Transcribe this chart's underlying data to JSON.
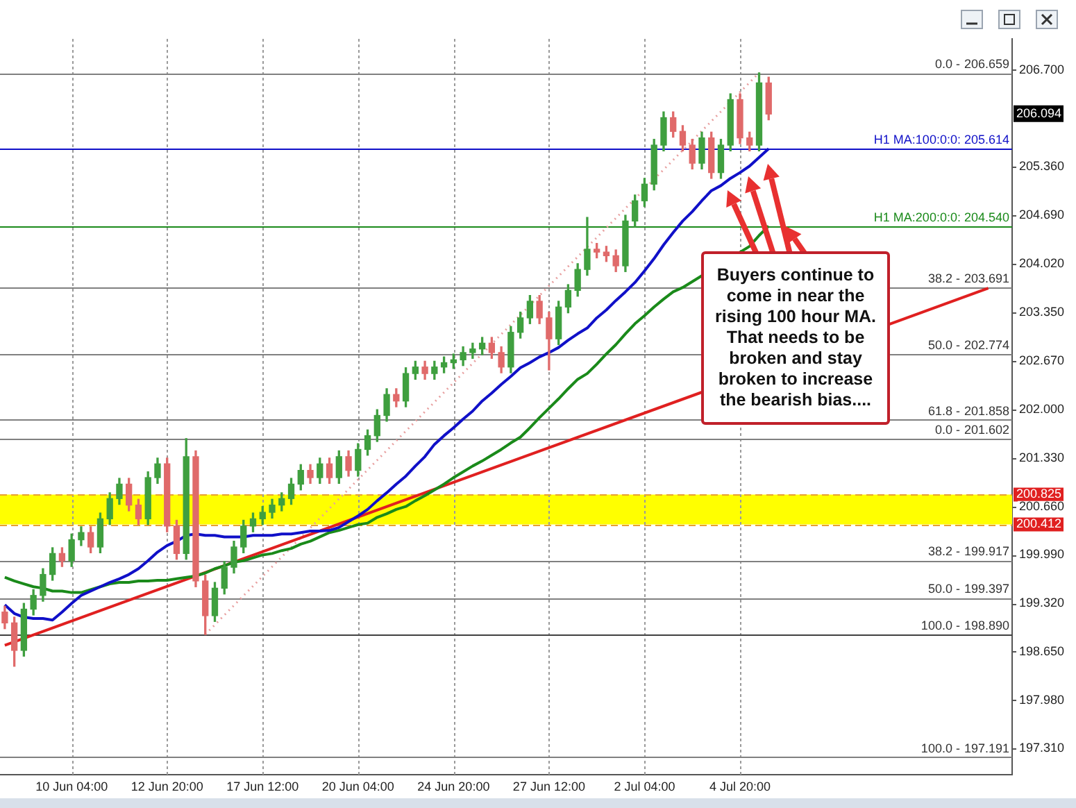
{
  "chart_data": {
    "type": "candlestick",
    "categories": [
      null,
      null,
      null,
      null,
      null,
      null,
      null,
      "10 Jun 04:00",
      null,
      null,
      null,
      null,
      null,
      null,
      null,
      null,
      null,
      "12 Jun 20:00",
      null,
      null,
      null,
      null,
      null,
      null,
      null,
      null,
      null,
      "17 Jun 12:00",
      null,
      null,
      null,
      null,
      null,
      null,
      null,
      null,
      null,
      "20 Jun 04:00",
      null,
      null,
      null,
      null,
      null,
      null,
      null,
      null,
      null,
      "24 Jun 20:00",
      null,
      null,
      null,
      null,
      null,
      null,
      null,
      null,
      null,
      "27 Jun 12:00",
      null,
      null,
      null,
      null,
      null,
      null,
      null,
      null,
      null,
      "2 Jul 04:00",
      null,
      null,
      null,
      null,
      null,
      null,
      null,
      null,
      null,
      "4 Jul 20:00",
      null,
      null,
      null,
      null,
      null,
      null,
      null,
      null,
      null,
      null,
      null,
      null,
      null,
      null,
      null,
      null,
      null,
      null,
      null,
      null,
      null,
      null,
      null,
      null,
      null,
      null,
      null,
      null
    ],
    "ohlc": [
      [
        199.2,
        199.28,
        198.97,
        199.05
      ],
      [
        199.05,
        199.13,
        198.45,
        198.67
      ],
      [
        198.67,
        199.32,
        198.59,
        199.24
      ],
      [
        199.24,
        199.51,
        199.16,
        199.43
      ],
      [
        199.43,
        199.8,
        199.35,
        199.72
      ],
      [
        199.72,
        200.09,
        199.64,
        200.01
      ],
      [
        200.01,
        200.09,
        199.83,
        199.91
      ],
      [
        199.91,
        200.28,
        199.83,
        200.2
      ],
      [
        200.2,
        200.38,
        200.12,
        200.3
      ],
      [
        200.3,
        200.38,
        200.02,
        200.1
      ],
      [
        200.1,
        200.57,
        200.02,
        200.49
      ],
      [
        200.49,
        200.85,
        200.41,
        200.77
      ],
      [
        200.77,
        201.05,
        200.69,
        200.97
      ],
      [
        200.97,
        201.05,
        200.6,
        200.68
      ],
      [
        200.68,
        200.76,
        200.41,
        200.49
      ],
      [
        200.49,
        201.14,
        200.41,
        201.06
      ],
      [
        201.06,
        201.33,
        200.98,
        201.25
      ],
      [
        201.25,
        201.33,
        200.31,
        200.39
      ],
      [
        200.39,
        200.47,
        199.93,
        200.01
      ],
      [
        200.01,
        201.6,
        199.93,
        201.35
      ],
      [
        201.35,
        201.43,
        199.55,
        199.63
      ],
      [
        199.63,
        199.71,
        198.89,
        199.15
      ],
      [
        199.15,
        199.61,
        199.07,
        199.53
      ],
      [
        199.53,
        199.9,
        199.45,
        199.82
      ],
      [
        199.82,
        200.18,
        199.74,
        200.1
      ],
      [
        200.1,
        200.47,
        200.02,
        200.39
      ],
      [
        200.39,
        200.57,
        200.31,
        200.49
      ],
      [
        200.49,
        200.66,
        200.41,
        200.58
      ],
      [
        200.58,
        200.76,
        200.5,
        200.68
      ],
      [
        200.68,
        200.85,
        200.6,
        200.77
      ],
      [
        200.77,
        201.05,
        200.69,
        200.97
      ],
      [
        200.97,
        201.24,
        200.89,
        201.16
      ],
      [
        201.16,
        201.24,
        200.98,
        201.06
      ],
      [
        201.06,
        201.33,
        200.98,
        201.25
      ],
      [
        201.25,
        201.33,
        200.98,
        201.06
      ],
      [
        201.06,
        201.43,
        200.98,
        201.35
      ],
      [
        201.35,
        201.43,
        201.08,
        201.16
      ],
      [
        201.16,
        201.53,
        201.08,
        201.45
      ],
      [
        201.45,
        201.72,
        201.37,
        201.64
      ],
      [
        201.64,
        202.0,
        201.56,
        201.92
      ],
      [
        201.92,
        202.29,
        201.84,
        202.21
      ],
      [
        202.21,
        202.29,
        202.04,
        202.12
      ],
      [
        202.12,
        202.58,
        202.04,
        202.5
      ],
      [
        202.5,
        202.67,
        202.42,
        202.59
      ],
      [
        202.59,
        202.67,
        202.42,
        202.5
      ],
      [
        202.5,
        202.67,
        202.42,
        202.59
      ],
      [
        202.59,
        202.73,
        202.51,
        202.65
      ],
      [
        202.65,
        202.77,
        202.57,
        202.69
      ],
      [
        202.69,
        202.87,
        202.61,
        202.79
      ],
      [
        202.79,
        202.92,
        202.71,
        202.84
      ],
      [
        202.84,
        203.0,
        202.76,
        202.92
      ],
      [
        202.92,
        203.0,
        202.71,
        202.79
      ],
      [
        202.79,
        202.87,
        202.51,
        202.59
      ],
      [
        202.59,
        203.15,
        202.51,
        203.07
      ],
      [
        203.07,
        203.35,
        202.99,
        203.27
      ],
      [
        203.27,
        203.58,
        203.19,
        203.5
      ],
      [
        203.5,
        203.58,
        203.19,
        203.27
      ],
      [
        203.27,
        203.35,
        202.55,
        202.98
      ],
      [
        202.98,
        203.5,
        202.9,
        203.42
      ],
      [
        203.42,
        203.73,
        203.34,
        203.65
      ],
      [
        203.65,
        204.02,
        203.57,
        203.94
      ],
      [
        203.94,
        204.66,
        203.86,
        204.22
      ],
      [
        204.22,
        204.3,
        204.1,
        204.18
      ],
      [
        204.18,
        204.26,
        204.05,
        204.13
      ],
      [
        204.13,
        204.21,
        203.91,
        203.99
      ],
      [
        203.99,
        204.69,
        203.91,
        204.61
      ],
      [
        204.61,
        204.97,
        204.53,
        204.89
      ],
      [
        204.89,
        205.2,
        204.81,
        205.12
      ],
      [
        205.12,
        205.74,
        205.04,
        205.66
      ],
      [
        205.66,
        206.12,
        205.58,
        206.04
      ],
      [
        206.04,
        206.12,
        205.77,
        205.85
      ],
      [
        205.85,
        205.93,
        205.58,
        205.66
      ],
      [
        205.66,
        205.74,
        205.33,
        205.41
      ],
      [
        205.41,
        205.84,
        205.33,
        205.76
      ],
      [
        205.76,
        205.84,
        205.2,
        205.28
      ],
      [
        205.28,
        205.74,
        205.2,
        205.66
      ],
      [
        205.66,
        206.37,
        205.58,
        206.29
      ],
      [
        206.29,
        206.37,
        205.68,
        205.76
      ],
      [
        205.76,
        205.84,
        205.58,
        205.66
      ],
      [
        205.66,
        206.66,
        205.58,
        206.52
      ],
      [
        206.52,
        206.6,
        206.01,
        206.09
      ],
      null,
      null,
      null,
      null,
      null,
      null,
      null,
      null,
      null,
      null,
      null,
      null,
      null,
      null,
      null,
      null,
      null,
      null,
      null,
      null,
      null,
      null,
      null,
      null,
      null
    ],
    "series": [
      {
        "type": "line",
        "color": "#1010c8",
        "values": [
          199.3,
          199.18,
          199.13,
          199.11,
          199.11,
          199.09,
          199.2,
          199.32,
          199.43,
          199.49,
          199.55,
          199.61,
          199.66,
          199.72,
          199.8,
          199.91,
          200.03,
          200.12,
          200.18,
          200.26,
          200.28,
          200.26,
          200.26,
          200.24,
          200.24,
          200.24,
          200.26,
          200.26,
          200.26,
          200.28,
          200.28,
          200.3,
          200.32,
          200.32,
          200.33,
          200.37,
          200.45,
          200.53,
          200.62,
          200.74,
          200.85,
          200.97,
          201.08,
          201.22,
          201.35,
          201.52,
          201.64,
          201.75,
          201.87,
          201.98,
          202.12,
          202.23,
          202.35,
          202.46,
          202.58,
          202.65,
          202.73,
          202.79,
          202.86,
          202.96,
          203.05,
          203.13,
          203.27,
          203.38,
          203.51,
          203.63,
          203.76,
          203.92,
          204.09,
          204.28,
          204.45,
          204.61,
          204.74,
          204.89,
          205.03,
          205.1,
          205.2,
          205.28,
          205.37,
          205.49,
          205.61,
          null,
          null,
          null,
          null,
          null,
          null,
          null,
          null,
          null,
          null,
          null,
          null,
          null,
          null,
          null,
          null,
          null,
          null,
          null,
          null,
          null,
          null,
          null,
          null,
          null
        ]
      },
      {
        "type": "line",
        "color": "#1a8a1a",
        "values": [
          199.68,
          199.63,
          199.59,
          199.55,
          199.53,
          199.49,
          199.49,
          199.47,
          199.47,
          199.51,
          199.55,
          199.59,
          199.61,
          199.61,
          199.63,
          199.63,
          199.64,
          199.64,
          199.66,
          199.68,
          199.7,
          199.74,
          199.8,
          199.84,
          199.89,
          199.91,
          199.95,
          199.99,
          200.01,
          200.05,
          200.08,
          200.14,
          200.18,
          200.24,
          200.3,
          200.33,
          200.37,
          200.41,
          200.43,
          200.51,
          200.56,
          200.62,
          200.66,
          200.74,
          200.81,
          200.89,
          200.97,
          201.06,
          201.14,
          201.22,
          201.29,
          201.37,
          201.45,
          201.54,
          201.62,
          201.75,
          201.89,
          202.02,
          202.15,
          202.29,
          202.42,
          202.5,
          202.63,
          202.77,
          202.9,
          203.05,
          203.19,
          203.3,
          203.42,
          203.53,
          203.63,
          203.69,
          null,
          null,
          null,
          null,
          null,
          null,
          204.26,
          204.41,
          204.54,
          null,
          null,
          null,
          null,
          null,
          null,
          null,
          null,
          null,
          null,
          null,
          null,
          null,
          null,
          null,
          null,
          null,
          null,
          null,
          null,
          null,
          null,
          null,
          null,
          null
        ]
      },
      {
        "type": "line",
        "color": "#e02020",
        "values": [
          198.74,
          null,
          null,
          null,
          null,
          null,
          null,
          null,
          null,
          null,
          null,
          null,
          null,
          null,
          null,
          null,
          null,
          null,
          null,
          null,
          null,
          null,
          null,
          null,
          null,
          null,
          null,
          null,
          null,
          null,
          null,
          null,
          null,
          null,
          null,
          null,
          null,
          null,
          null,
          null,
          null,
          null,
          null,
          null,
          null,
          null,
          null,
          null,
          null,
          null,
          null,
          null,
          null,
          null,
          null,
          null,
          null,
          null,
          null,
          null,
          null,
          null,
          null,
          null,
          null,
          null,
          null,
          null,
          null,
          null,
          null,
          null,
          null,
          null,
          null,
          null,
          null,
          null,
          null,
          null,
          null,
          null,
          null,
          null,
          null,
          null,
          null,
          null,
          null,
          null,
          null,
          null,
          null,
          null,
          null,
          null,
          null,
          null,
          null,
          null,
          null,
          null,
          null,
          203.68,
          null,
          null
        ]
      },
      {
        "type": "line",
        "color": "#e8a0a0",
        "line_style": "dotted",
        "values": [
          null,
          null,
          null,
          null,
          null,
          null,
          null,
          null,
          null,
          null,
          null,
          null,
          null,
          null,
          null,
          null,
          null,
          null,
          null,
          null,
          null,
          198.89,
          null,
          null,
          null,
          null,
          null,
          null,
          null,
          null,
          null,
          null,
          null,
          null,
          null,
          null,
          null,
          null,
          null,
          null,
          null,
          null,
          null,
          null,
          null,
          null,
          null,
          null,
          null,
          null,
          null,
          null,
          null,
          null,
          null,
          null,
          null,
          null,
          null,
          null,
          null,
          null,
          null,
          null,
          null,
          null,
          null,
          null,
          null,
          null,
          null,
          null,
          null,
          null,
          null,
          null,
          null,
          null,
          null,
          206.66,
          null,
          null,
          null,
          null,
          null,
          null,
          null,
          null,
          null,
          null,
          null,
          null,
          null,
          null,
          null,
          null,
          null,
          null,
          null,
          null,
          null,
          null,
          null,
          null,
          null,
          null
        ]
      }
    ],
    "ylim": [
      196.95,
      207.13
    ],
    "yticks": [
      {
        "value": 206.7,
        "label": "206.700"
      },
      {
        "value": 205.36,
        "label": "205.360"
      },
      {
        "value": 204.69,
        "label": "204.690"
      },
      {
        "value": 204.02,
        "label": "204.020"
      },
      {
        "value": 203.35,
        "label": "203.350"
      },
      {
        "value": 202.67,
        "label": "202.670"
      },
      {
        "value": 202.0,
        "label": "202.000"
      },
      {
        "value": 201.33,
        "label": "201.330"
      },
      {
        "value": 200.66,
        "label": "200.660"
      },
      {
        "value": 199.99,
        "label": "199.990"
      },
      {
        "value": 199.32,
        "label": "199.320"
      },
      {
        "value": 198.65,
        "label": "198.650"
      },
      {
        "value": 197.98,
        "label": "197.980"
      },
      {
        "value": 197.31,
        "label": "197.310"
      }
    ],
    "bands": [
      {
        "axis": "y",
        "from": 200.412,
        "to": 200.825,
        "color": "#ffff00"
      }
    ],
    "ref_lines": [
      {
        "axis": "y",
        "value": 206.659,
        "label": "206.659",
        "color": "#808080"
      },
      {
        "axis": "y",
        "value": 205.614,
        "label": "H1 MA:100:0:0: 205.614",
        "color": "#1010c8"
      },
      {
        "axis": "y",
        "value": 204.54,
        "label": "H1 MA:200:0:0: 204.540",
        "color": "#1a8a1a"
      },
      {
        "axis": "y",
        "value": 203.691,
        "label": "203.691",
        "color": "#808080"
      },
      {
        "axis": "y",
        "value": 202.774,
        "label": "202.774",
        "color": "#808080"
      },
      {
        "axis": "y",
        "value": 201.858,
        "label": "201.858",
        "color": "#808080"
      },
      {
        "axis": "y",
        "value": 201.602,
        "label": "201.602",
        "color": "#808080"
      },
      {
        "axis": "y",
        "value": 200.825,
        "label": "200.825",
        "color": "#e8a030",
        "line_style": "dashed"
      },
      {
        "axis": "y",
        "value": 200.412,
        "label": "200.412",
        "color": "#e8a030",
        "line_style": "dashed"
      },
      {
        "axis": "y",
        "value": 199.917,
        "label": "199.917",
        "color": "#808080"
      },
      {
        "axis": "y",
        "value": 199.397,
        "label": "199.397",
        "color": "#808080"
      },
      {
        "axis": "y",
        "value": 198.89,
        "label": "198.890",
        "color": "#404040"
      },
      {
        "axis": "y",
        "value": 197.191,
        "label": "197.191",
        "color": "#808080"
      }
    ],
    "annotations": [
      "Buyers continue to come in near the rising 100 hour MA. That needs to be broken and stay broken to increase the bearish bias....",
      {
        "text": "206.094",
        "y": 206.094
      },
      {
        "text": "0.0 -",
        "y": 206.659
      },
      {
        "text": "38.2 -",
        "y": 203.691
      },
      {
        "text": "50.0 -",
        "y": 202.774
      },
      {
        "text": "61.8 -",
        "y": 201.858
      },
      {
        "text": "0.0 -",
        "y": 201.602
      },
      {
        "text": "38.2 -",
        "y": 199.917
      },
      {
        "text": "50.0 -",
        "y": 199.397
      },
      {
        "text": "100.0 -",
        "y": 198.89
      },
      {
        "text": "100.0 -",
        "y": 197.191
      }
    ],
    "grid": "x"
  }
}
